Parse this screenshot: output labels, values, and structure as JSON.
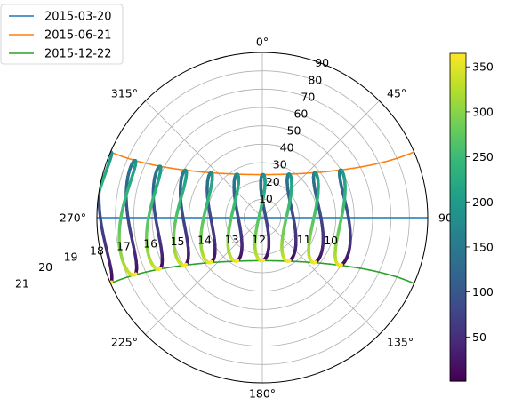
{
  "chart_data": {
    "type": "scatter",
    "projection": "polar",
    "theta_zero": "N",
    "theta_direction": "clockwise",
    "r_axis": "zenith angle",
    "rlim": [
      0,
      90
    ],
    "r_ticks": [
      "10",
      "20",
      "30",
      "40",
      "50",
      "60",
      "70",
      "80",
      "90"
    ],
    "theta_ticks": [
      "0°",
      "45°",
      "90°",
      "135°",
      "180°",
      "225°",
      "270°",
      "315°"
    ],
    "grid": true,
    "legend": {
      "placement": "top-left outside",
      "entries": [
        "2015-03-20",
        "2015-06-21",
        "2015-12-22"
      ]
    },
    "series": [
      {
        "name": "2015-03-20",
        "color": "#1f77b4",
        "declination": 0
      },
      {
        "name": "2015-06-21",
        "color": "#ff7f0e",
        "declination": 23.44
      },
      {
        "name": "2015-12-22",
        "color": "#2ca02c",
        "declination": -23.44
      }
    ],
    "hour_labels": [
      "10",
      "11",
      "12",
      "13",
      "14",
      "15",
      "16",
      "17",
      "18",
      "19",
      "20",
      "21"
    ],
    "analemma_hours": [
      9,
      10,
      11,
      12,
      13,
      14,
      15,
      16,
      17,
      18,
      19,
      20,
      21
    ],
    "latitude": 0,
    "colorbar": {
      "colormap": "viridis",
      "range": [
        1,
        365
      ],
      "tick_labels": [
        "50",
        "100",
        "150",
        "200",
        "250",
        "300",
        "350"
      ],
      "tick_values": [
        50,
        100,
        150,
        200,
        250,
        300,
        350
      ]
    },
    "colors": {
      "grid": "#b0b0b0",
      "frame": "#000000"
    }
  }
}
